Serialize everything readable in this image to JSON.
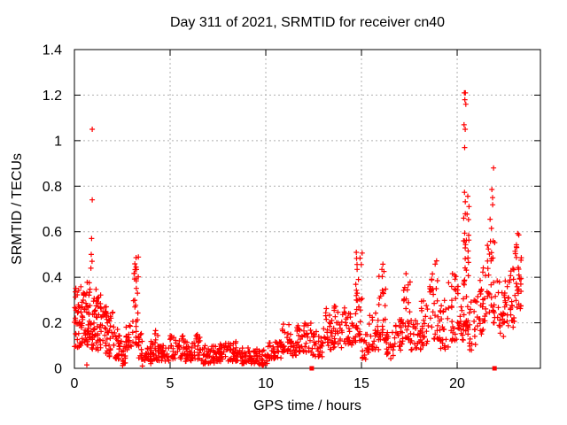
{
  "figure": {
    "title": "Day 311 of 2021, SRMTID for receiver cn40",
    "xlabel": "GPS time / hours",
    "ylabel": "SRMTID / TECUs"
  },
  "chart_data": {
    "type": "scatter",
    "title": "Day 311 of 2021, SRMTID for receiver cn40",
    "xlabel": "GPS time / hours",
    "ylabel": "SRMTID / TECUs",
    "xlim": [
      0,
      24.35
    ],
    "ylim": [
      0,
      1.4
    ],
    "xticks": [
      0,
      5,
      10,
      15,
      20
    ],
    "xtick_labels": [
      "0",
      "5",
      "10",
      "15",
      "20"
    ],
    "yticks": [
      0,
      0.2,
      0.4,
      0.6,
      0.8,
      1.0,
      1.2,
      1.4
    ],
    "ytick_labels": [
      "0",
      "0.2",
      "0.4",
      "0.6",
      "0.8",
      "1",
      "1.2",
      "1.4"
    ],
    "grid": true,
    "grid_style": "dotted",
    "grid_color": "#b0b0b0",
    "frame_color": "#000000",
    "marker": "plus",
    "marker_color": "#ff0000",
    "marker_size": 7,
    "legend": "none",
    "seed": 42,
    "band_bins": [
      [
        0.0,
        0.3,
        0.09,
        0.4,
        30
      ],
      [
        0.3,
        0.6,
        0.1,
        0.36,
        30
      ],
      [
        0.6,
        0.9,
        0.1,
        0.38,
        32
      ],
      [
        0.9,
        1.2,
        0.08,
        0.35,
        30
      ],
      [
        1.2,
        1.5,
        0.08,
        0.33,
        26
      ],
      [
        1.5,
        1.8,
        0.06,
        0.28,
        24
      ],
      [
        1.8,
        2.1,
        0.05,
        0.27,
        22
      ],
      [
        2.1,
        2.4,
        0.04,
        0.18,
        20
      ],
      [
        2.4,
        2.7,
        0.02,
        0.12,
        20
      ],
      [
        2.7,
        3.0,
        0.04,
        0.2,
        20
      ],
      [
        3.0,
        3.35,
        0.1,
        0.5,
        34
      ],
      [
        3.35,
        3.6,
        0.04,
        0.18,
        16
      ],
      [
        3.6,
        4.0,
        0.02,
        0.1,
        26
      ],
      [
        4.0,
        4.4,
        0.03,
        0.17,
        26
      ],
      [
        4.4,
        5.0,
        0.03,
        0.1,
        34
      ],
      [
        5.0,
        5.7,
        0.04,
        0.15,
        40
      ],
      [
        5.7,
        6.2,
        0.03,
        0.12,
        30
      ],
      [
        6.2,
        6.6,
        0.04,
        0.15,
        24
      ],
      [
        6.6,
        7.4,
        0.02,
        0.1,
        44
      ],
      [
        7.4,
        8.2,
        0.03,
        0.11,
        44
      ],
      [
        8.2,
        8.7,
        0.03,
        0.12,
        28
      ],
      [
        8.7,
        9.6,
        0.02,
        0.09,
        48
      ],
      [
        9.6,
        10.1,
        0.015,
        0.08,
        26
      ],
      [
        10.1,
        10.8,
        0.04,
        0.12,
        36
      ],
      [
        10.8,
        11.3,
        0.07,
        0.2,
        28
      ],
      [
        11.3,
        11.6,
        0.05,
        0.12,
        16
      ],
      [
        11.6,
        12.4,
        0.07,
        0.2,
        42
      ],
      [
        12.4,
        13.0,
        0.05,
        0.17,
        30
      ],
      [
        13.0,
        13.5,
        0.08,
        0.28,
        28
      ],
      [
        13.5,
        14.2,
        0.09,
        0.28,
        36
      ],
      [
        14.2,
        14.7,
        0.1,
        0.26,
        26
      ],
      [
        14.7,
        15.05,
        0.12,
        0.52,
        32
      ],
      [
        15.05,
        15.4,
        0.04,
        0.15,
        18
      ],
      [
        15.4,
        15.9,
        0.08,
        0.25,
        26
      ],
      [
        15.9,
        16.3,
        0.12,
        0.47,
        28
      ],
      [
        16.3,
        16.7,
        0.04,
        0.16,
        20
      ],
      [
        16.7,
        17.2,
        0.08,
        0.22,
        26
      ],
      [
        17.2,
        17.55,
        0.12,
        0.42,
        24
      ],
      [
        17.55,
        18.1,
        0.08,
        0.22,
        28
      ],
      [
        18.1,
        18.55,
        0.1,
        0.3,
        24
      ],
      [
        18.55,
        19.05,
        0.12,
        0.48,
        28
      ],
      [
        19.05,
        19.55,
        0.08,
        0.3,
        26
      ],
      [
        19.55,
        20.1,
        0.12,
        0.45,
        30
      ],
      [
        20.1,
        20.32,
        0.12,
        0.3,
        12
      ],
      [
        20.32,
        20.62,
        0.15,
        0.55,
        32
      ],
      [
        20.32,
        20.62,
        0.55,
        0.78,
        14
      ],
      [
        20.62,
        21.05,
        0.08,
        0.3,
        20
      ],
      [
        21.05,
        21.45,
        0.15,
        0.45,
        24
      ],
      [
        21.45,
        22.0,
        0.2,
        0.55,
        32
      ],
      [
        21.7,
        22.0,
        0.55,
        0.8,
        8
      ],
      [
        22.0,
        22.6,
        0.14,
        0.4,
        28
      ],
      [
        22.6,
        23.0,
        0.18,
        0.45,
        24
      ],
      [
        23.0,
        23.35,
        0.25,
        0.63,
        30
      ]
    ],
    "outlier_points": [
      [
        0.93,
        1.05
      ],
      [
        0.93,
        0.74
      ],
      [
        0.9,
        0.57
      ],
      [
        0.88,
        0.5
      ],
      [
        0.92,
        0.47
      ],
      [
        0.86,
        0.44
      ],
      [
        0.65,
        0.015
      ],
      [
        2.52,
        0.012
      ],
      [
        3.55,
        0.01
      ],
      [
        9.85,
        0.012
      ],
      [
        20.38,
        1.21
      ],
      [
        20.43,
        1.21
      ],
      [
        20.4,
        1.18
      ],
      [
        20.45,
        1.16
      ],
      [
        20.36,
        1.07
      ],
      [
        20.42,
        1.05
      ],
      [
        20.39,
        0.97
      ],
      [
        21.9,
        0.88
      ]
    ],
    "square_points": [
      [
        12.4,
        0
      ],
      [
        21.95,
        0
      ]
    ]
  }
}
